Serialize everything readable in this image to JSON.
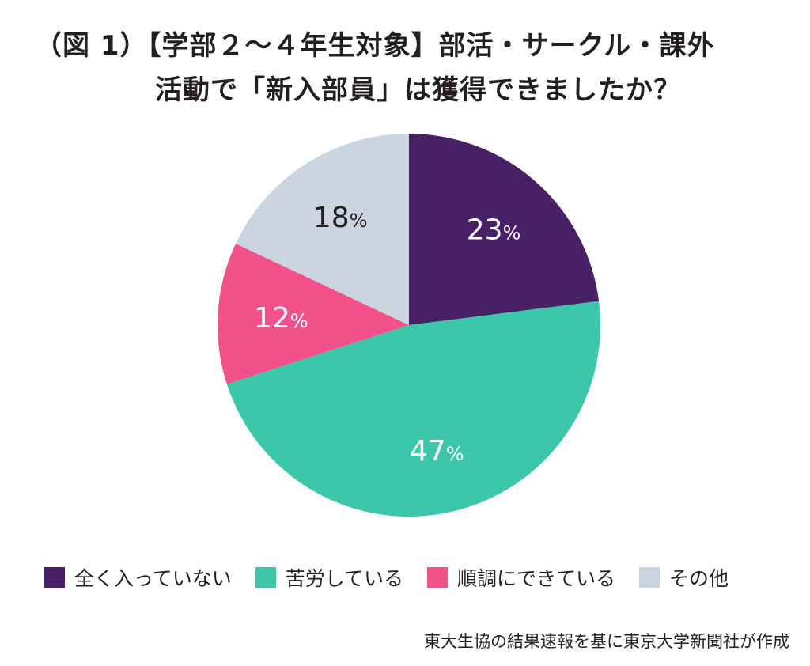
{
  "title": {
    "line1": "（図 1）【学部２～４年生対象】部活・サークル・課外",
    "line2": "活動で「新入部員」は獲得できましたか？"
  },
  "chart_data": {
    "type": "pie",
    "start_angle_deg": 0,
    "direction": "clockwise",
    "slices": [
      {
        "label": "全く入っていない",
        "value": 23,
        "display": "23",
        "unit": "%",
        "color": "#482066",
        "text_color": "#ffffff"
      },
      {
        "label": "苦労している",
        "value": 47,
        "display": "47",
        "unit": "%",
        "color": "#3cc7aa",
        "text_color": "#ffffff"
      },
      {
        "label": "順調にできている",
        "value": 12,
        "display": "12",
        "unit": "%",
        "color": "#f25289",
        "text_color": "#ffffff"
      },
      {
        "label": "その他",
        "value": 18,
        "display": "18",
        "unit": "%",
        "color": "#cbd5e0",
        "text_color": "#231f20"
      }
    ],
    "legend_position": "bottom"
  },
  "source": "東大生協の結果速報を基に東京大学新聞社が作成"
}
